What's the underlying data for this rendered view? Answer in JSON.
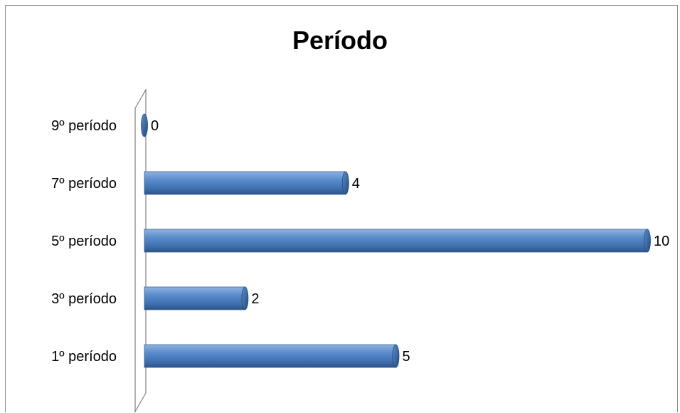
{
  "chart_data": {
    "type": "bar",
    "orientation": "horizontal",
    "title": "Período",
    "categories": [
      "1º período",
      "3º período",
      "5º período",
      "7º período",
      "9º período"
    ],
    "values": [
      5,
      2,
      10,
      4,
      0
    ],
    "data_labels": [
      "5",
      "2",
      "10",
      "4",
      "0"
    ],
    "xlim": [
      0,
      10
    ],
    "grid": false,
    "legend": "none",
    "bar_color": "#4f81bd",
    "style": "3d-cylinder"
  }
}
